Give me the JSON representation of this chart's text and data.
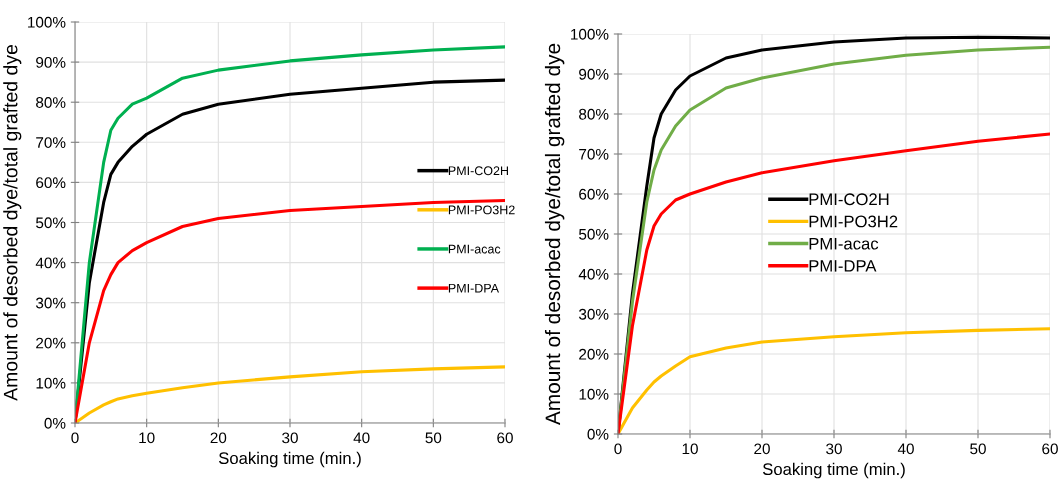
{
  "chart_data": [
    {
      "type": "line",
      "xlabel": "Soaking time (min.)",
      "ylabel": "Amount of desorbed dye/total grafted dye",
      "x": [
        0,
        2,
        4,
        5,
        6,
        8,
        10,
        15,
        20,
        30,
        40,
        50,
        60
      ],
      "series": [
        {
          "name": "PMI-CO2H",
          "color": "#000000",
          "values": [
            0,
            35,
            55,
            62,
            65,
            69,
            72,
            77,
            79.5,
            82,
            83.5,
            85,
            85.5
          ]
        },
        {
          "name": "PMI-PO3H2",
          "color": "#ffc000",
          "values": [
            0,
            2.5,
            4.5,
            5.3,
            6,
            6.8,
            7.4,
            8.8,
            10,
            11.5,
            12.8,
            13.5,
            14
          ]
        },
        {
          "name": "PMI-acac",
          "color": "#00b050",
          "values": [
            0,
            40,
            65,
            73,
            76,
            79.5,
            81,
            86,
            88,
            90.3,
            91.8,
            93,
            93.8
          ]
        },
        {
          "name": "PMI-DPA",
          "color": "#ff0000",
          "values": [
            0,
            20,
            33,
            37,
            40,
            43,
            45,
            49,
            51,
            53,
            54,
            55,
            55.5
          ]
        }
      ],
      "xlim": [
        0,
        60
      ],
      "xticks": [
        0,
        10,
        20,
        30,
        40,
        50,
        60
      ],
      "ylim": [
        0,
        100
      ],
      "yticks": [
        {
          "value": 0,
          "label": "0%"
        },
        {
          "value": 10,
          "label": "10%"
        },
        {
          "value": 20,
          "label": "20%"
        },
        {
          "value": 30,
          "label": "30%"
        },
        {
          "value": 40,
          "label": "40%"
        },
        {
          "value": 50,
          "label": "50%"
        },
        {
          "value": 60,
          "label": "60%"
        },
        {
          "value": 70,
          "label": "70%"
        },
        {
          "value": 80,
          "label": "80%"
        },
        {
          "value": 90,
          "label": "90%"
        },
        {
          "value": 100,
          "label": "100%"
        }
      ],
      "grid": true,
      "legend": "right",
      "marker": "none",
      "line_style": "solid"
    },
    {
      "type": "line",
      "xlabel": "Soaking time (min.)",
      "ylabel": "Amount of desorbed dye/total grafted dye",
      "x": [
        0,
        2,
        4,
        5,
        6,
        8,
        10,
        15,
        20,
        30,
        40,
        50,
        60
      ],
      "series": [
        {
          "name": "PMI-CO2H",
          "color": "#000000",
          "values": [
            0,
            35,
            62,
            74,
            80,
            86,
            89.5,
            94,
            96,
            98,
            99,
            99.2,
            99
          ]
        },
        {
          "name": "PMI-PO3H2",
          "color": "#ffc000",
          "values": [
            0,
            6.5,
            11,
            13,
            14.5,
            17,
            19.3,
            21.5,
            23,
            24.3,
            25.3,
            25.9,
            26.3
          ]
        },
        {
          "name": "PMI-acac",
          "color": "#70ad47",
          "values": [
            0,
            33,
            58,
            66,
            71,
            77,
            81,
            86.5,
            89,
            92.5,
            94.7,
            96,
            96.7
          ]
        },
        {
          "name": "PMI-DPA",
          "color": "#ff0000",
          "values": [
            0,
            27,
            46,
            52,
            55,
            58.5,
            60,
            63,
            65.3,
            68.3,
            70.8,
            73.2,
            75
          ]
        }
      ],
      "xlim": [
        0,
        60
      ],
      "xticks": [
        0,
        10,
        20,
        30,
        40,
        50,
        60
      ],
      "ylim": [
        0,
        100
      ],
      "yticks": [
        {
          "value": 0,
          "label": "0%"
        },
        {
          "value": 10,
          "label": "10%"
        },
        {
          "value": 20,
          "label": "20%"
        },
        {
          "value": 30,
          "label": "30%"
        },
        {
          "value": 40,
          "label": "40%"
        },
        {
          "value": 50,
          "label": "50%"
        },
        {
          "value": 60,
          "label": "60%"
        },
        {
          "value": 70,
          "label": "70%"
        },
        {
          "value": 80,
          "label": "80%"
        },
        {
          "value": 90,
          "label": "90%"
        },
        {
          "value": 100,
          "label": "100%"
        }
      ],
      "grid": true,
      "legend": "center",
      "marker": "none",
      "line_style": "solid"
    }
  ]
}
